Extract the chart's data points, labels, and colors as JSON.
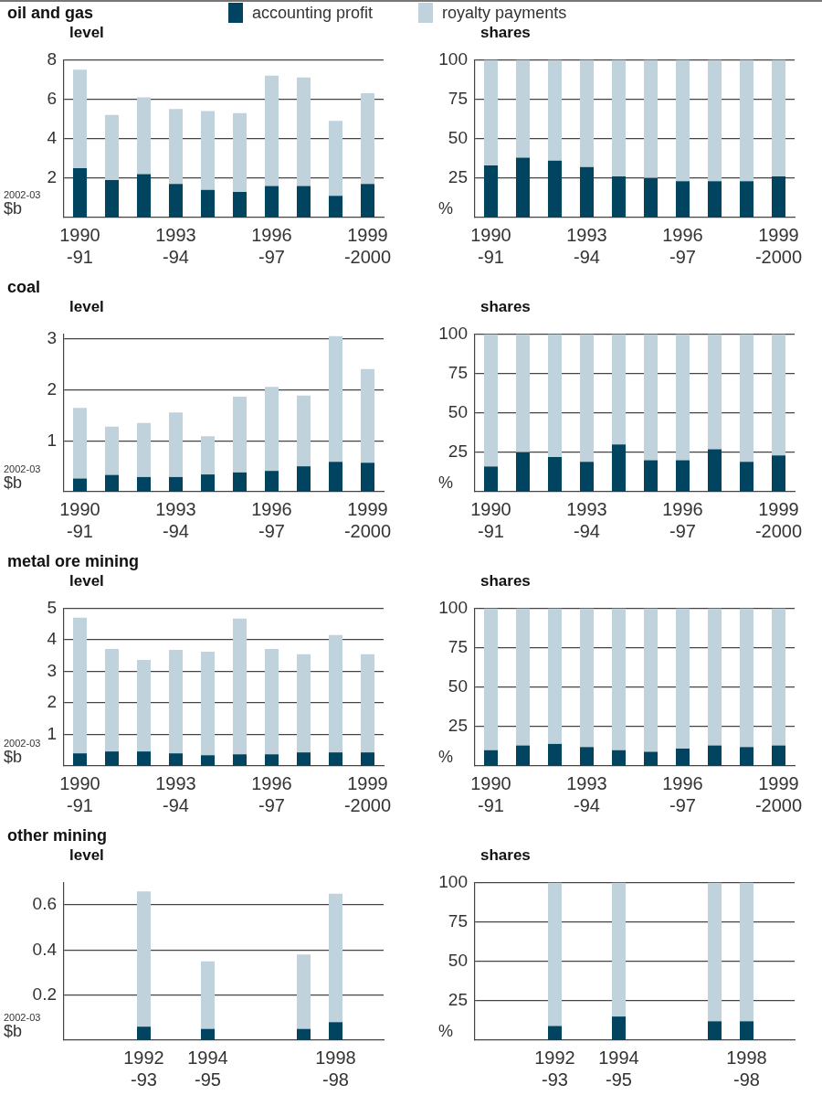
{
  "chart_data": [
    {
      "type": "bar",
      "title": "oil and gas",
      "subtitle": "level",
      "ylabel": "2002-03 $b",
      "stacked": true,
      "grid": "y",
      "legend": "top",
      "ylim": [
        0,
        8
      ],
      "yticks": [
        2,
        4,
        6,
        8
      ],
      "categories": [
        "1990\n-91",
        null,
        null,
        "1993\n-94",
        null,
        null,
        "1996\n-97",
        null,
        null,
        "1999\n-2000"
      ],
      "series": [
        {
          "name": "accounting profit",
          "color": "#00445f",
          "values": [
            2.5,
            1.9,
            2.2,
            1.7,
            1.4,
            1.3,
            1.6,
            1.6,
            1.1,
            1.7
          ]
        },
        {
          "name": "royalty payments",
          "color": "#c0d2db",
          "values": [
            5.0,
            3.3,
            3.9,
            3.8,
            4.0,
            4.0,
            5.6,
            5.5,
            3.8,
            4.6
          ]
        }
      ]
    },
    {
      "type": "bar",
      "subtitle": "shares",
      "ylabel": "%",
      "stacked": true,
      "grid": "y",
      "ylim": [
        0,
        100
      ],
      "yticks": [
        25,
        50,
        75,
        100
      ],
      "categories": [
        "1990\n-91",
        null,
        null,
        "1993\n-94",
        null,
        null,
        "1996\n-97",
        null,
        null,
        "1999\n-2000"
      ],
      "series": [
        {
          "color": "#00445f",
          "values": [
            33,
            38,
            36,
            32,
            26,
            25,
            23,
            23,
            23,
            26
          ]
        },
        {
          "color": "#c0d2db",
          "values": [
            67,
            62,
            64,
            68,
            74,
            75,
            77,
            77,
            77,
            74
          ]
        }
      ]
    },
    {
      "type": "bar",
      "title": "coal",
      "subtitle": "level",
      "ylabel": "2002-03 $b",
      "stacked": true,
      "grid": "y",
      "ylim": [
        0,
        3.1
      ],
      "yticks": [
        1,
        2,
        3
      ],
      "categories": [
        "1990\n-91",
        null,
        null,
        "1993\n-94",
        null,
        null,
        "1996\n-97",
        null,
        null,
        "1999\n-2000"
      ],
      "series": [
        {
          "color": "#00445f",
          "values": [
            0.26,
            0.33,
            0.29,
            0.29,
            0.34,
            0.38,
            0.41,
            0.5,
            0.59,
            0.57
          ]
        },
        {
          "color": "#c0d2db",
          "values": [
            1.39,
            0.95,
            1.06,
            1.27,
            0.75,
            1.49,
            1.65,
            1.39,
            2.47,
            1.84
          ]
        }
      ]
    },
    {
      "type": "bar",
      "subtitle": "shares",
      "ylabel": "%",
      "stacked": true,
      "grid": "y",
      "ylim": [
        0,
        100
      ],
      "yticks": [
        25,
        50,
        75,
        100
      ],
      "categories": [
        "1990\n-91",
        null,
        null,
        "1993\n-94",
        null,
        null,
        "1996\n-97",
        null,
        null,
        "1999\n-2000"
      ],
      "series": [
        {
          "color": "#00445f",
          "values": [
            16,
            25,
            22,
            19,
            30,
            20,
            20,
            27,
            19,
            23
          ]
        },
        {
          "color": "#c0d2db",
          "values": [
            84,
            75,
            78,
            81,
            70,
            80,
            80,
            73,
            81,
            77
          ]
        }
      ]
    },
    {
      "type": "bar",
      "title": "metal ore mining",
      "subtitle": "level",
      "ylabel": "2002-03 $b",
      "stacked": true,
      "grid": "y",
      "ylim": [
        0,
        5
      ],
      "yticks": [
        1,
        2,
        3,
        4,
        5
      ],
      "categories": [
        "1990\n-91",
        null,
        null,
        "1993\n-94",
        null,
        null,
        "1996\n-97",
        null,
        null,
        "1999\n-2000"
      ],
      "series": [
        {
          "color": "#00445f",
          "values": [
            0.4,
            0.46,
            0.46,
            0.4,
            0.34,
            0.37,
            0.37,
            0.43,
            0.43,
            0.43
          ]
        },
        {
          "color": "#c0d2db",
          "values": [
            4.3,
            3.25,
            2.9,
            3.28,
            3.28,
            4.3,
            3.34,
            3.11,
            3.72,
            3.11
          ]
        }
      ]
    },
    {
      "type": "bar",
      "subtitle": "shares",
      "ylabel": "%",
      "stacked": true,
      "grid": "y",
      "ylim": [
        0,
        100
      ],
      "yticks": [
        25,
        50,
        75,
        100
      ],
      "categories": [
        "1990\n-91",
        null,
        null,
        "1993\n-94",
        null,
        null,
        "1996\n-97",
        null,
        null,
        "1999\n-2000"
      ],
      "series": [
        {
          "color": "#00445f",
          "values": [
            10,
            13,
            14,
            12,
            10,
            9,
            11,
            13,
            12,
            13
          ]
        },
        {
          "color": "#c0d2db",
          "values": [
            90,
            87,
            86,
            88,
            90,
            91,
            89,
            87,
            88,
            87
          ]
        }
      ]
    },
    {
      "type": "bar",
      "title": "other mining",
      "subtitle": "level",
      "ylabel": "2002-03 $b",
      "stacked": true,
      "grid": "y",
      "ylim": [
        0,
        0.7
      ],
      "yticks": [
        0.2,
        0.4,
        0.6
      ],
      "categories": [
        null,
        null,
        "1992\n-93",
        null,
        "1994\n-95",
        null,
        null,
        null,
        "1998\n-98",
        null
      ],
      "series": [
        {
          "color": "#00445f",
          "values": [
            null,
            null,
            0.06,
            null,
            0.05,
            null,
            null,
            0.05,
            0.08,
            null
          ]
        },
        {
          "color": "#c0d2db",
          "values": [
            null,
            null,
            0.6,
            null,
            0.3,
            null,
            null,
            0.33,
            0.57,
            null
          ]
        }
      ]
    },
    {
      "type": "bar",
      "subtitle": "shares",
      "ylabel": "%",
      "stacked": true,
      "grid": "y",
      "ylim": [
        0,
        100
      ],
      "yticks": [
        25,
        50,
        75,
        100
      ],
      "categories": [
        null,
        null,
        "1992\n-93",
        null,
        "1994\n-95",
        null,
        null,
        null,
        "1998\n-98",
        null
      ],
      "series": [
        {
          "color": "#00445f",
          "values": [
            null,
            null,
            9,
            null,
            15,
            null,
            null,
            12,
            12,
            null
          ]
        },
        {
          "color": "#c0d2db",
          "values": [
            null,
            null,
            91,
            null,
            85,
            null,
            null,
            88,
            88,
            null
          ]
        }
      ]
    }
  ]
}
